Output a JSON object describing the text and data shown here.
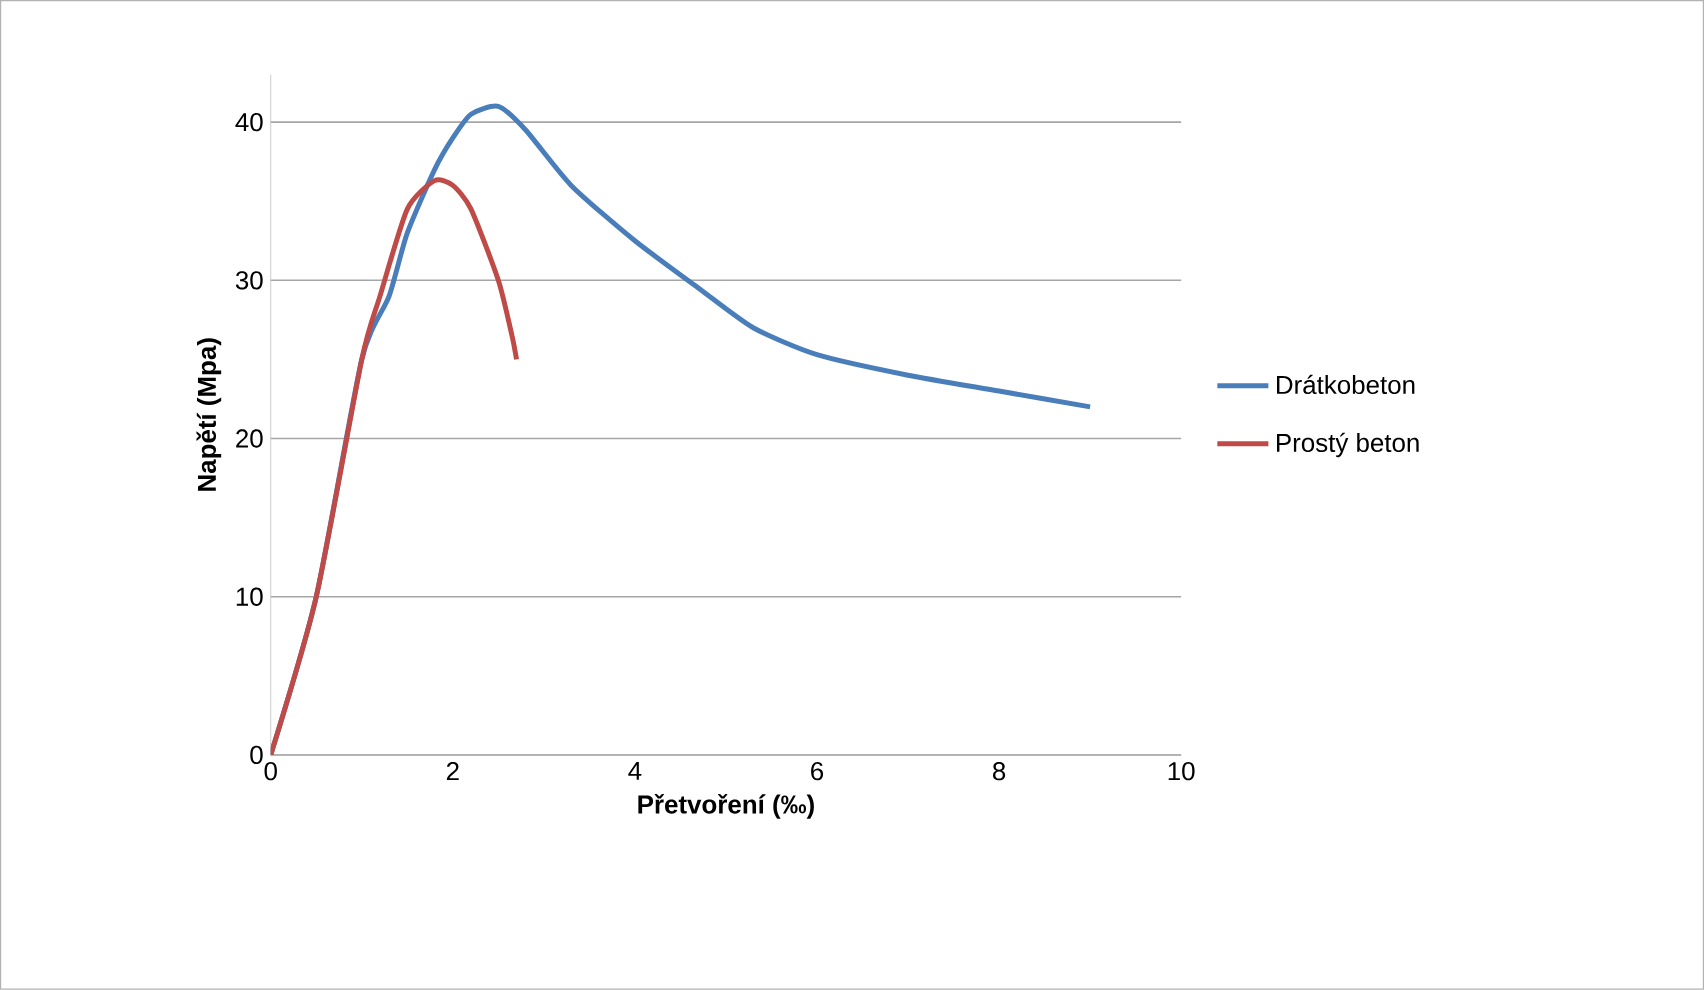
{
  "chart_data": {
    "type": "line",
    "xlabel": "Přetvoření (‰)",
    "ylabel": "Napětí (Mpa)",
    "xlim": [
      0,
      10
    ],
    "ylim": [
      0,
      43
    ],
    "xticks": [
      0,
      2,
      4,
      6,
      8,
      10
    ],
    "yticks": [
      0,
      10,
      20,
      30,
      40
    ],
    "grid": "y",
    "legend": "right",
    "marker": "none",
    "line_style": "solid",
    "series": [
      {
        "name": "Drátkobeton",
        "color": "#4a7ebb",
        "x": [
          0,
          0.5,
          1,
          1.3,
          1.5,
          1.8,
          2,
          2.2,
          2.5,
          2.8,
          3.3,
          4,
          4.7,
          5.3,
          6,
          7,
          8,
          9
        ],
        "values": [
          0,
          10,
          25,
          29,
          33,
          37,
          39,
          40.5,
          41,
          39.5,
          36,
          32.5,
          29.5,
          27,
          25.3,
          24,
          23,
          22
        ]
      },
      {
        "name": "Prostý beton",
        "color": "#be4b48",
        "x": [
          0,
          0.5,
          1,
          1.2,
          1.5,
          1.8,
          2,
          2.2,
          2.5,
          2.65,
          2.7
        ],
        "values": [
          0,
          10,
          25,
          29,
          34.5,
          36.3,
          36,
          34.5,
          30,
          26.5,
          25
        ]
      }
    ]
  }
}
